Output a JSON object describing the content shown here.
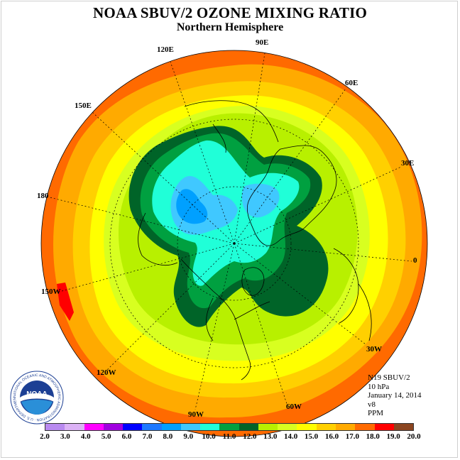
{
  "title": "NOAA SBUV/2 OZONE MIXING RATIO",
  "subtitle": "Northern Hemisphere",
  "longitude_labels": {
    "e90": "90E",
    "e120": "120E",
    "e150": "150E",
    "w180": "180",
    "w150": "150W",
    "w120": "120W",
    "w90": "90W",
    "w60": "60W",
    "w30": "30W",
    "zero": "0",
    "e30": "30E",
    "e60": "60E"
  },
  "info": {
    "instrument": "N19 SBUV/2",
    "pressure_level": "10 hPa",
    "date": "January 14, 2014",
    "version": "v8",
    "units": "PPM"
  },
  "logo_text": "NOAA",
  "logo_ring_text": "NATIONAL OCEANIC AND ATMOSPHERIC ADMINISTRATION · U.S. DEPARTMENT OF COMMERCE",
  "color_scale": {
    "ticks": [
      "2.0",
      "3.0",
      "4.0",
      "5.0",
      "6.0",
      "7.0",
      "8.0",
      "9.0",
      "10.0",
      "11.0",
      "12.0",
      "13.0",
      "14.0",
      "15.0",
      "16.0",
      "17.0",
      "18.0",
      "19.0",
      "20.0"
    ],
    "colors": [
      "#b98af0",
      "#dcb2f6",
      "#ff00ff",
      "#a000e0",
      "#0000ff",
      "#1e78ff",
      "#00a0ff",
      "#40c8ff",
      "#20ffd8",
      "#00a040",
      "#006428",
      "#b8f000",
      "#d8ff20",
      "#ffff00",
      "#ffd000",
      "#ffaa00",
      "#ff6a00",
      "#ff0000",
      "#8b4520"
    ]
  },
  "field_colors": {
    "outer": "#ff6a00",
    "l17": "#ffaa00",
    "l16": "#ffd000",
    "l15": "#ffff00",
    "l14": "#d8ff20",
    "l13": "#b8f000",
    "l12": "#006428",
    "l11": "#00a040",
    "l10": "#20ffd8",
    "l9": "#40c8ff",
    "l8": "#00a0ff",
    "edge_max": "#ff0000"
  }
}
